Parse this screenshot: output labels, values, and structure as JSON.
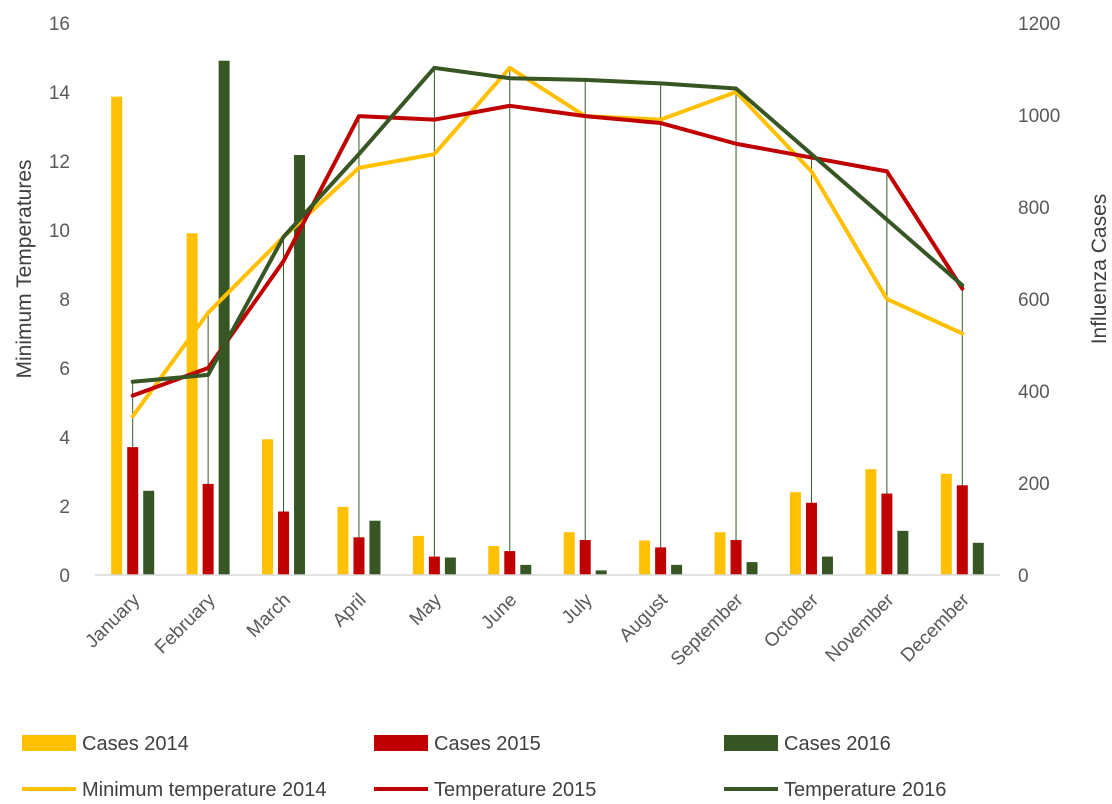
{
  "chart_data": {
    "type": "bar",
    "title": "",
    "categories": [
      "January",
      "February",
      "March",
      "April",
      "May",
      "June",
      "July",
      "August",
      "September",
      "October",
      "November",
      "December"
    ],
    "ylabel_left": "Minimum Temperatures",
    "ylabel_right": "Influenza Cases",
    "ylim_left": [
      0,
      16
    ],
    "ylim_right": [
      0,
      1200
    ],
    "yticks_left": [
      "0",
      "2",
      "4",
      "6",
      "8",
      "10",
      "12",
      "14",
      "16"
    ],
    "yticks_right": [
      "0",
      "200",
      "400",
      "600",
      "800",
      "1000",
      "1200"
    ],
    "bar_series": [
      {
        "name": "Cases 2014",
        "axis": "right",
        "color": "#FFC000",
        "values": [
          1040,
          743,
          295,
          148,
          85,
          63,
          93,
          75,
          93,
          180,
          230,
          220
        ]
      },
      {
        "name": "Cases 2015",
        "axis": "right",
        "color": "#C00000",
        "values": [
          278,
          198,
          138,
          82,
          40,
          52,
          76,
          60,
          76,
          157,
          177,
          195
        ]
      },
      {
        "name": "Cases 2016",
        "axis": "right",
        "color": "#375623",
        "values": [
          183,
          1118,
          913,
          118,
          38,
          22,
          10,
          22,
          28,
          40,
          96,
          70
        ]
      }
    ],
    "line_series": [
      {
        "name": "Minimum temperature 2014",
        "axis": "left",
        "color": "#FFC000",
        "values": [
          4.6,
          7.6,
          9.8,
          11.8,
          12.2,
          14.7,
          13.3,
          13.2,
          14.0,
          11.7,
          8.0,
          7.0
        ]
      },
      {
        "name": "Temperature 2015",
        "axis": "left",
        "color": "#C00000",
        "values": [
          5.2,
          6.0,
          9.1,
          13.3,
          13.2,
          13.6,
          13.3,
          13.1,
          12.5,
          12.1,
          11.7,
          8.3
        ]
      },
      {
        "name": "Temperature 2016",
        "axis": "left",
        "color": "#375623",
        "values": [
          5.6,
          5.8,
          9.8,
          12.2,
          14.7,
          14.4,
          14.35,
          14.25,
          14.1,
          12.2,
          10.3,
          8.4
        ]
      }
    ],
    "drop_lines": true,
    "grid": false,
    "legend_position": "bottom"
  }
}
